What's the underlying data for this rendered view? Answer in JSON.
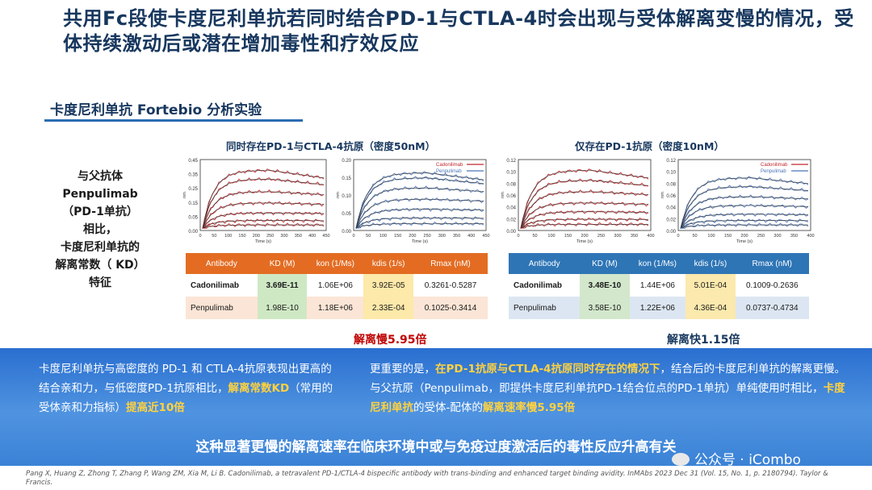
{
  "title": "共用Fc段使卡度尼利单抗若同时结合PD-1与CTLA-4时会出现与受体解离变慢的情况，受体持续激动后或潜在增加毒性和疗效反应",
  "subtitle": "卡度尼利单抗 Fortebio 分析实验",
  "left_label": [
    "与父抗体",
    "Penpulimab",
    "（PD-1单抗）",
    "相比，",
    "卡度尼利单抗的",
    "解离常数（ KD）",
    "特征"
  ],
  "chart_left_title": "同时存在PD-1与CTLA-4抗原（密度50nM）",
  "chart_right_title": "仅存在PD-1抗原（密度10nM）",
  "charts": {
    "a": {
      "yticks": [
        "0.45",
        "0.35",
        "0.25",
        "0.15",
        "0.05",
        "0.00"
      ],
      "xticks": [
        "0",
        "50",
        "100",
        "150",
        "200",
        "250",
        "300",
        "350",
        "400",
        "450"
      ],
      "xlabel": "Time (s)",
      "ylabel": "nm"
    },
    "b": {
      "yticks": [
        "0.20",
        "0.15",
        "0.10",
        "0.05",
        "0.00"
      ],
      "xticks": [
        "0",
        "50",
        "100",
        "150",
        "200",
        "250",
        "300",
        "350",
        "400",
        "450"
      ],
      "xlabel": "Time (s)",
      "ylabel": "nm",
      "legend": [
        "Cadonilimab",
        "Penpulimab"
      ]
    },
    "c": {
      "yticks": [
        "0.12",
        "0.10",
        "0.08",
        "0.06",
        "0.04",
        "0.02",
        "0.00"
      ],
      "xticks": [
        "0",
        "50",
        "100",
        "150",
        "200",
        "250",
        "300",
        "350",
        "400"
      ],
      "xlabel": "Time (s)",
      "ylabel": "nm"
    },
    "d": {
      "yticks": [
        "0.12",
        "0.10",
        "0.08",
        "0.06",
        "0.04",
        "0.02",
        "0.00"
      ],
      "xticks": [
        "0",
        "50",
        "100",
        "150",
        "200",
        "250",
        "300",
        "350",
        "400"
      ],
      "xlabel": "Time (s)",
      "ylabel": "nm",
      "legend": [
        "Cadonilimab",
        "Penpulimab"
      ]
    }
  },
  "colors": {
    "red_curve": "#c0282c",
    "blue_curve": "#4a74b8",
    "fit": "#333333"
  },
  "table_left": {
    "headers": [
      "Antibody",
      "KD (M)",
      "kon (1/Ms)",
      "kdis (1/s)",
      "Rmax (nM)"
    ],
    "rows": [
      [
        "Cadonilimab",
        "3.69E-11",
        "1.06E+06",
        "3.92E-05",
        "0.3261-0.5287"
      ],
      [
        "Penpulimab",
        "1.98E-10",
        "1.18E+06",
        "2.33E-04",
        "0.1025-0.3414"
      ]
    ]
  },
  "table_right": {
    "headers": [
      "Antibody",
      "KD (M)",
      "kon (1/Ms)",
      "kdis (1/s)",
      "Rmax (nM)"
    ],
    "rows": [
      [
        "Cadonilimab",
        "3.48E-10",
        "1.44E+06",
        "5.01E-04",
        "0.1009-0.2636"
      ],
      [
        "Penpulimab",
        "3.58E-10",
        "1.22E+06",
        "4.36E-04",
        "0.0737-0.4734"
      ]
    ]
  },
  "slow_label": "解离慢5.95倍",
  "fast_label": "解离快1.15倍",
  "para_left": {
    "p1": "卡度尼利单抗与高密度的 PD-1 和 CTLA-4抗原表现出更高的结合亲和力，与低密度PD-1抗原相比，",
    "h1": "解离常数KD",
    "p2": "（常用的受体亲和力指标）",
    "h2": "提高近10倍"
  },
  "para_right": {
    "p1": "更重要的是，",
    "h1": "在PD-1抗原与CTLA-4抗原同时存在的情况下",
    "p2": "，结合后的卡度尼利单抗的解离更慢。与父抗原（Penpulimab，即提供卡度尼利单抗PD-1结合位点的PD-1单抗）单纯使用时相比，",
    "h2": "卡度尼利单抗",
    "p3": "的受体-配体的",
    "h3": "解离速率慢5.95倍"
  },
  "bottom_line": "这种显著更慢的解离速率在临床环境中或与免疫过度激活后的毒性反应升高有关",
  "watermark": "公众号 · iCombo",
  "citation": "Pang X, Huang Z, Zhong T, Zhang P, Wang ZM, Xia M, Li B. Cadonilimab, a tetravalent PD-1/CTLA-4 bispecific antibody with trans-binding and enhanced target binding avidity. InMAbs 2023 Dec 31 (Vol. 15, No. 1, p. 2180794). Taylor & Francis."
}
